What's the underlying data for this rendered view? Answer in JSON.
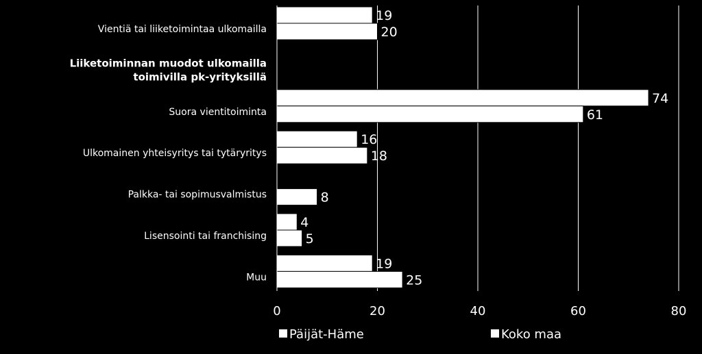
{
  "colors": {
    "background": "#000000",
    "bar_fill": "#ffffff",
    "bar_stroke": "#000000",
    "text": "#ffffff",
    "grid": "#ffffff"
  },
  "chart_data": {
    "type": "bar",
    "orientation": "horizontal",
    "title": "",
    "xlabel": "",
    "ylabel": "",
    "xlim": [
      0,
      80
    ],
    "x_ticks": [
      "0",
      "20",
      "40",
      "60",
      "80"
    ],
    "grid": "vertical gridlines",
    "legend_position": "bottom",
    "categories": [
      "Vientiä tai liiketoimintaa ulkomailla",
      "Liiketoiminnan muodot ulkomailla toimivilla pk-yrityksillä",
      "Suora vientitoiminta",
      "Ulkomainen yhteisyritys tai tytäryritys",
      "Palkka- tai sopimusvalmistus",
      "Lisensointi tai franchising",
      "Muu"
    ],
    "category_label_lines": [
      [
        "Vientiä tai liiketoimintaa ulkomailla"
      ],
      [
        "Liiketoiminnan muodot ulkomailla",
        "toimivilla pk-yrityksillä"
      ],
      [
        "Suora vientitoiminta"
      ],
      [
        "Ulkomainen yhteisyritys tai tytäryritys"
      ],
      [
        "Palkka- tai sopimusvalmistus"
      ],
      [
        "Lisensointi tai franchising"
      ],
      [
        "Muu"
      ]
    ],
    "category_bold": [
      false,
      true,
      false,
      false,
      false,
      false,
      false
    ],
    "series": [
      {
        "name": "Päijät-Häme",
        "values": [
          19,
          null,
          74,
          16,
          null,
          4,
          19
        ]
      },
      {
        "name": "Koko maa",
        "values": [
          20,
          null,
          61,
          18,
          8,
          5,
          25
        ]
      }
    ]
  }
}
